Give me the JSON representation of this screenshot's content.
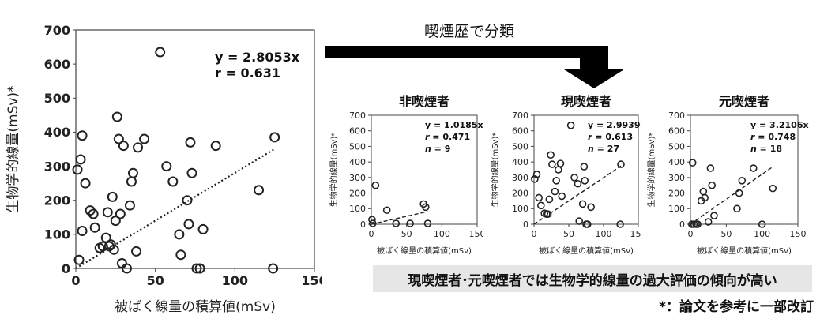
{
  "flow_label": "喫煙歴で分類",
  "conclusion": "現喫煙者･元喫煙者では生物学的線量の過大評価の傾向が高い",
  "footnote": "*：論文を参考に一部改訂",
  "chart_data": [
    {
      "type": "scatter",
      "title": "",
      "xlabel": "被ばく線量の積算値(mSv)",
      "ylabel": "生物学的線量(mSv)*",
      "xlim": [
        0,
        150
      ],
      "ylim": [
        0,
        700
      ],
      "xticks": [
        0,
        50,
        100,
        150
      ],
      "yticks": [
        0,
        100,
        200,
        300,
        400,
        500,
        600,
        700
      ],
      "annotation_lines": [
        "y = 2.8053x",
        "r = 0.631"
      ],
      "trendline": {
        "slope": 2.8053,
        "style": "dotted"
      },
      "points": [
        [
          1,
          290
        ],
        [
          2,
          25
        ],
        [
          3,
          320
        ],
        [
          4,
          390
        ],
        [
          4,
          110
        ],
        [
          6,
          250
        ],
        [
          9,
          170
        ],
        [
          11,
          160
        ],
        [
          12,
          120
        ],
        [
          15,
          60
        ],
        [
          17,
          65
        ],
        [
          19,
          90
        ],
        [
          20,
          165
        ],
        [
          21,
          65
        ],
        [
          22,
          70
        ],
        [
          23,
          210
        ],
        [
          24,
          55
        ],
        [
          25,
          140
        ],
        [
          26,
          445
        ],
        [
          27,
          380
        ],
        [
          28,
          160
        ],
        [
          29,
          15
        ],
        [
          30,
          360
        ],
        [
          32,
          0
        ],
        [
          34,
          185
        ],
        [
          35,
          255
        ],
        [
          36,
          280
        ],
        [
          38,
          50
        ],
        [
          39,
          355
        ],
        [
          43,
          380
        ],
        [
          53,
          635
        ],
        [
          57,
          300
        ],
        [
          61,
          255
        ],
        [
          65,
          100
        ],
        [
          66,
          40
        ],
        [
          70,
          200
        ],
        [
          71,
          130
        ],
        [
          72,
          370
        ],
        [
          73,
          280
        ],
        [
          76,
          0
        ],
        [
          78,
          0
        ],
        [
          80,
          115
        ],
        [
          88,
          360
        ],
        [
          115,
          230
        ],
        [
          124,
          0
        ],
        [
          125,
          385
        ]
      ]
    },
    {
      "type": "scatter",
      "title": "非喫煙者",
      "xlabel": "被ばく線量の積算値(mSv)",
      "ylabel": "生物学的線量(mSv)*",
      "xlim": [
        0,
        150
      ],
      "ylim": [
        0,
        700
      ],
      "xticks": [
        0,
        50,
        100,
        150
      ],
      "yticks": [
        0,
        100,
        200,
        300,
        400,
        500,
        600,
        700
      ],
      "annotation": {
        "eq": "y = 1.0185x",
        "r": "0.471",
        "n": "9"
      },
      "trendline": {
        "slope": 1.0185,
        "style": "dashed"
      },
      "points": [
        [
          1,
          30
        ],
        [
          2,
          5
        ],
        [
          6,
          250
        ],
        [
          22,
          90
        ],
        [
          35,
          5
        ],
        [
          55,
          5
        ],
        [
          74,
          130
        ],
        [
          77,
          110
        ],
        [
          80,
          5
        ]
      ]
    },
    {
      "type": "scatter",
      "title": "現喫煙者",
      "xlabel": "被ばく線量の積算値(mSv)",
      "ylabel": "生物学的線量(mSv)*",
      "xlim": [
        0,
        150
      ],
      "ylim": [
        0,
        700
      ],
      "xticks": [
        0,
        50,
        100,
        150
      ],
      "yticks": [
        0,
        100,
        200,
        300,
        400,
        500,
        600,
        700
      ],
      "annotation": {
        "eq": "y = 2.9939x",
        "r": "0.613",
        "n": "27"
      },
      "trendline": {
        "slope": 2.9939,
        "style": "dashed"
      },
      "points": [
        [
          1,
          290
        ],
        [
          4,
          320
        ],
        [
          7,
          170
        ],
        [
          10,
          120
        ],
        [
          15,
          70
        ],
        [
          18,
          65
        ],
        [
          20,
          65
        ],
        [
          22,
          160
        ],
        [
          24,
          445
        ],
        [
          26,
          385
        ],
        [
          30,
          210
        ],
        [
          32,
          280
        ],
        [
          35,
          350
        ],
        [
          38,
          390
        ],
        [
          40,
          180
        ],
        [
          53,
          635
        ],
        [
          58,
          300
        ],
        [
          63,
          260
        ],
        [
          65,
          20
        ],
        [
          70,
          130
        ],
        [
          72,
          370
        ],
        [
          73,
          280
        ],
        [
          75,
          0
        ],
        [
          77,
          0
        ],
        [
          82,
          110
        ],
        [
          124,
          0
        ],
        [
          125,
          385
        ]
      ]
    },
    {
      "type": "scatter",
      "title": "元喫煙者",
      "xlabel": "被ばく線量の積算値(mSv)",
      "ylabel": "生物学的線量(mSv)*",
      "xlim": [
        0,
        150
      ],
      "ylim": [
        0,
        700
      ],
      "xticks": [
        0,
        50,
        100,
        150
      ],
      "yticks": [
        0,
        100,
        200,
        300,
        400,
        500,
        600,
        700
      ],
      "annotation": {
        "eq": "y = 3.2106x",
        "r": "0.748",
        "n": "18"
      },
      "trendline": {
        "slope": 3.2106,
        "style": "dashed"
      },
      "points": [
        [
          2,
          0
        ],
        [
          3,
          395
        ],
        [
          5,
          0
        ],
        [
          8,
          0
        ],
        [
          10,
          0
        ],
        [
          15,
          150
        ],
        [
          18,
          210
        ],
        [
          20,
          170
        ],
        [
          25,
          15
        ],
        [
          28,
          360
        ],
        [
          30,
          250
        ],
        [
          33,
          55
        ],
        [
          65,
          100
        ],
        [
          68,
          200
        ],
        [
          72,
          280
        ],
        [
          88,
          360
        ],
        [
          100,
          0
        ],
        [
          115,
          230
        ]
      ]
    }
  ]
}
